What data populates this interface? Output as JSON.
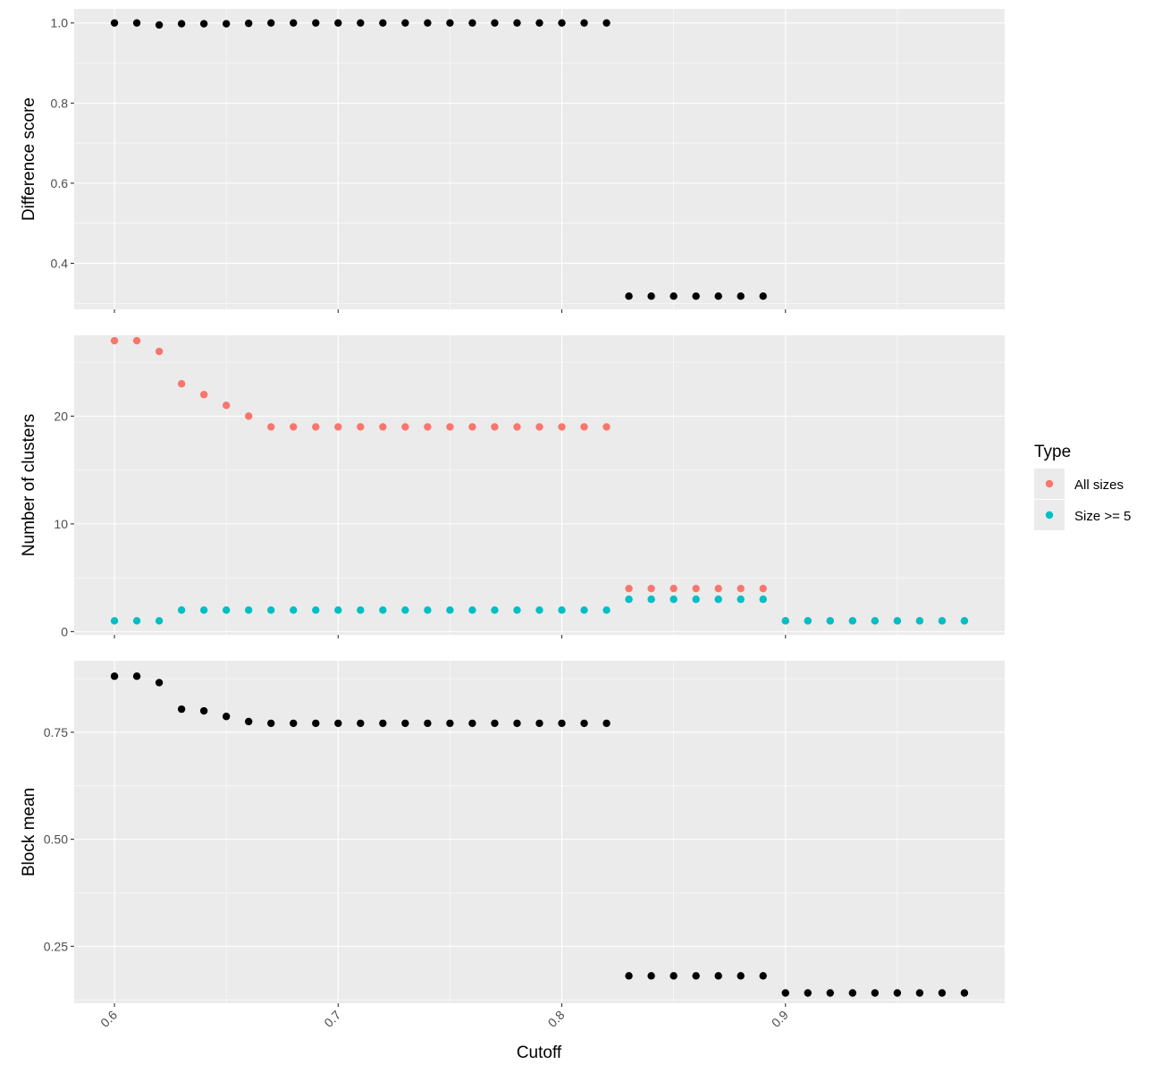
{
  "chart_data": [
    {
      "type": "scatter",
      "ylabel": "Difference score",
      "ylim": [
        0.285,
        1.035
      ],
      "yticks": [
        0.4,
        0.6,
        0.8,
        1.0
      ],
      "ytick_labels": [
        "0.4",
        "0.6",
        "0.8",
        "1.0"
      ],
      "grid": true,
      "series": [
        {
          "color": "#000000",
          "points": [
            [
              0.6,
              1.0
            ],
            [
              0.61,
              1.0
            ],
            [
              0.62,
              0.995
            ],
            [
              0.63,
              0.998
            ],
            [
              0.64,
              0.998
            ],
            [
              0.65,
              0.998
            ],
            [
              0.66,
              0.999
            ],
            [
              0.67,
              1.0
            ],
            [
              0.68,
              1.0
            ],
            [
              0.69,
              1.0
            ],
            [
              0.7,
              1.0
            ],
            [
              0.71,
              1.0
            ],
            [
              0.72,
              1.0
            ],
            [
              0.73,
              1.0
            ],
            [
              0.74,
              1.0
            ],
            [
              0.75,
              1.0
            ],
            [
              0.76,
              1.0
            ],
            [
              0.77,
              1.0
            ],
            [
              0.78,
              1.0
            ],
            [
              0.79,
              1.0
            ],
            [
              0.8,
              1.0
            ],
            [
              0.81,
              1.0
            ],
            [
              0.82,
              1.0
            ],
            [
              0.83,
              0.318
            ],
            [
              0.84,
              0.318
            ],
            [
              0.85,
              0.318
            ],
            [
              0.86,
              0.318
            ],
            [
              0.87,
              0.318
            ],
            [
              0.88,
              0.318
            ],
            [
              0.89,
              0.318
            ]
          ]
        }
      ]
    },
    {
      "type": "scatter",
      "ylabel": "Number of clusters",
      "ylim": [
        -0.3,
        27.5
      ],
      "yticks": [
        0,
        10,
        20
      ],
      "ytick_labels": [
        "0",
        "10",
        "20"
      ],
      "grid": true,
      "legend": {
        "title": "Type",
        "placement": "right"
      },
      "series": [
        {
          "name": "All sizes",
          "color": "#F8766D",
          "points": [
            [
              0.6,
              27
            ],
            [
              0.61,
              27
            ],
            [
              0.62,
              26
            ],
            [
              0.63,
              23
            ],
            [
              0.64,
              22
            ],
            [
              0.65,
              21
            ],
            [
              0.66,
              20
            ],
            [
              0.67,
              19
            ],
            [
              0.68,
              19
            ],
            [
              0.69,
              19
            ],
            [
              0.7,
              19
            ],
            [
              0.71,
              19
            ],
            [
              0.72,
              19
            ],
            [
              0.73,
              19
            ],
            [
              0.74,
              19
            ],
            [
              0.75,
              19
            ],
            [
              0.76,
              19
            ],
            [
              0.77,
              19
            ],
            [
              0.78,
              19
            ],
            [
              0.79,
              19
            ],
            [
              0.8,
              19
            ],
            [
              0.81,
              19
            ],
            [
              0.82,
              19
            ],
            [
              0.83,
              4
            ],
            [
              0.84,
              4
            ],
            [
              0.85,
              4
            ],
            [
              0.86,
              4
            ],
            [
              0.87,
              4
            ],
            [
              0.88,
              4
            ],
            [
              0.89,
              4
            ],
            [
              0.9,
              1
            ],
            [
              0.91,
              1
            ],
            [
              0.92,
              1
            ],
            [
              0.93,
              1
            ],
            [
              0.94,
              1
            ],
            [
              0.95,
              1
            ],
            [
              0.96,
              1
            ],
            [
              0.97,
              1
            ],
            [
              0.98,
              1
            ]
          ]
        },
        {
          "name": "Size >= 5",
          "color": "#00BFC4",
          "points": [
            [
              0.6,
              1
            ],
            [
              0.61,
              1
            ],
            [
              0.62,
              1
            ],
            [
              0.63,
              2
            ],
            [
              0.64,
              2
            ],
            [
              0.65,
              2
            ],
            [
              0.66,
              2
            ],
            [
              0.67,
              2
            ],
            [
              0.68,
              2
            ],
            [
              0.69,
              2
            ],
            [
              0.7,
              2
            ],
            [
              0.71,
              2
            ],
            [
              0.72,
              2
            ],
            [
              0.73,
              2
            ],
            [
              0.74,
              2
            ],
            [
              0.75,
              2
            ],
            [
              0.76,
              2
            ],
            [
              0.77,
              2
            ],
            [
              0.78,
              2
            ],
            [
              0.79,
              2
            ],
            [
              0.8,
              2
            ],
            [
              0.81,
              2
            ],
            [
              0.82,
              2
            ],
            [
              0.83,
              3
            ],
            [
              0.84,
              3
            ],
            [
              0.85,
              3
            ],
            [
              0.86,
              3
            ],
            [
              0.87,
              3
            ],
            [
              0.88,
              3
            ],
            [
              0.89,
              3
            ],
            [
              0.9,
              1
            ],
            [
              0.91,
              1
            ],
            [
              0.92,
              1
            ],
            [
              0.93,
              1
            ],
            [
              0.94,
              1
            ],
            [
              0.95,
              1
            ],
            [
              0.96,
              1
            ],
            [
              0.97,
              1
            ],
            [
              0.98,
              1
            ]
          ]
        }
      ]
    },
    {
      "type": "scatter",
      "ylabel": "Block mean",
      "xlabel": "Cutoff",
      "ylim": [
        0.117,
        0.917
      ],
      "yticks": [
        0.25,
        0.5,
        0.75
      ],
      "ytick_labels": [
        "0.25",
        "0.50",
        "0.75"
      ],
      "grid": true,
      "series": [
        {
          "color": "#000000",
          "points": [
            [
              0.6,
              0.881
            ],
            [
              0.61,
              0.881
            ],
            [
              0.62,
              0.866
            ],
            [
              0.63,
              0.804
            ],
            [
              0.64,
              0.8
            ],
            [
              0.65,
              0.787
            ],
            [
              0.66,
              0.775
            ],
            [
              0.67,
              0.771
            ],
            [
              0.68,
              0.771
            ],
            [
              0.69,
              0.771
            ],
            [
              0.7,
              0.771
            ],
            [
              0.71,
              0.771
            ],
            [
              0.72,
              0.771
            ],
            [
              0.73,
              0.771
            ],
            [
              0.74,
              0.771
            ],
            [
              0.75,
              0.771
            ],
            [
              0.76,
              0.771
            ],
            [
              0.77,
              0.771
            ],
            [
              0.78,
              0.771
            ],
            [
              0.79,
              0.771
            ],
            [
              0.8,
              0.771
            ],
            [
              0.81,
              0.771
            ],
            [
              0.82,
              0.771
            ],
            [
              0.83,
              0.181
            ],
            [
              0.84,
              0.181
            ],
            [
              0.85,
              0.181
            ],
            [
              0.86,
              0.181
            ],
            [
              0.87,
              0.181
            ],
            [
              0.88,
              0.181
            ],
            [
              0.89,
              0.181
            ],
            [
              0.9,
              0.141
            ],
            [
              0.91,
              0.141
            ],
            [
              0.92,
              0.141
            ],
            [
              0.93,
              0.141
            ],
            [
              0.94,
              0.141
            ],
            [
              0.95,
              0.141
            ],
            [
              0.96,
              0.141
            ],
            [
              0.97,
              0.141
            ],
            [
              0.98,
              0.141
            ]
          ]
        }
      ]
    }
  ],
  "x_axis": {
    "label": "Cutoff",
    "xlim": [
      0.582,
      0.998
    ],
    "ticks": [
      0.6,
      0.7,
      0.8,
      0.9
    ],
    "tick_labels": [
      "0.6",
      "0.7",
      "0.8",
      "0.9"
    ]
  },
  "legend": {
    "title": "Type",
    "entries": [
      {
        "label": "All sizes",
        "color": "#F8766D"
      },
      {
        "label": "Size >= 5",
        "color": "#00BFC4"
      }
    ]
  }
}
